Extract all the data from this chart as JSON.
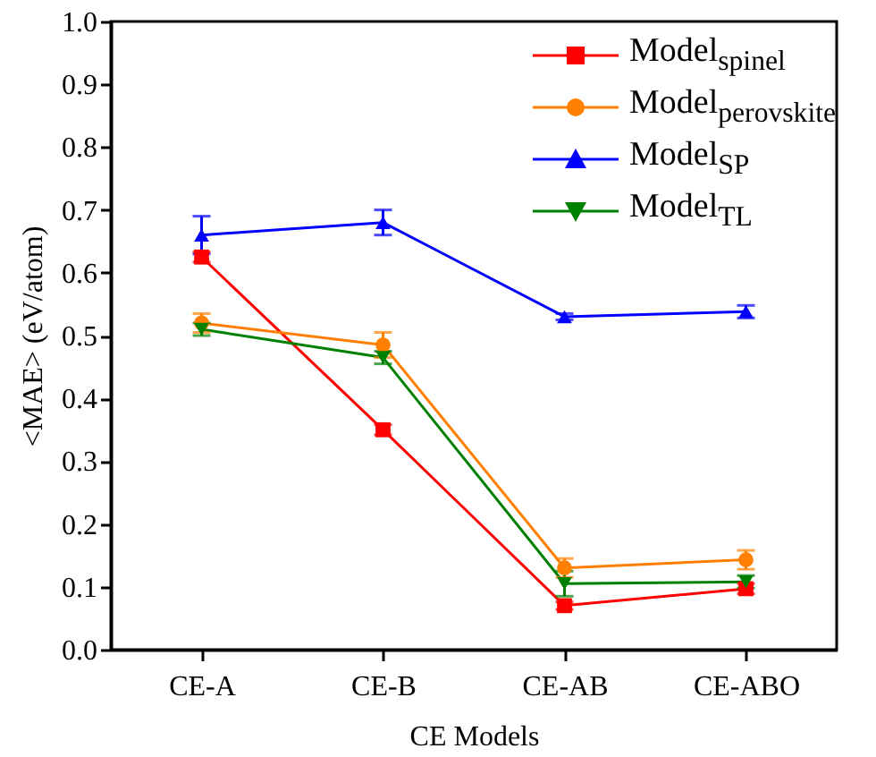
{
  "chart_data": {
    "type": "line",
    "xlabel": "CE Models",
    "ylabel": "<MAE> (eV/atom)",
    "categories": [
      "CE-A",
      "CE-B",
      "CE-AB",
      "CE-ABO"
    ],
    "ylim": [
      0,
      1
    ],
    "yticks": [
      {
        "value": 0,
        "label": "0.0"
      },
      {
        "value": 0.1,
        "label": "0.1"
      },
      {
        "value": 0.2,
        "label": "0.2"
      },
      {
        "value": 0.3,
        "label": "0.3"
      },
      {
        "value": 0.4,
        "label": "0.4"
      },
      {
        "value": 0.5,
        "label": "0.5"
      },
      {
        "value": 0.6,
        "label": "0.6"
      },
      {
        "value": 0.7,
        "label": "0.7"
      },
      {
        "value": 0.8,
        "label": "0.8"
      },
      {
        "value": 0.9,
        "label": "0.9"
      },
      {
        "value": 1,
        "label": "1.0"
      }
    ],
    "grid": false,
    "legend": "top right",
    "series": [
      {
        "name": "Model$_{spinel}$",
        "color": "#ff0000",
        "marker": "square",
        "values": [
          0.625,
          0.35,
          0.07,
          0.097
        ],
        "errors": [
          0.008,
          0.008,
          0.006,
          0.008
        ]
      },
      {
        "name": "Model$_{perovskite}$",
        "color": "#ff8000",
        "marker": "circle",
        "values": [
          0.52,
          0.485,
          0.13,
          0.143
        ],
        "errors": [
          0.015,
          0.02,
          0.015,
          0.015
        ]
      },
      {
        "name": "Model$_{SP}$",
        "color": "#0000ff",
        "marker": "triangle",
        "values": [
          0.66,
          0.68,
          0.53,
          0.538
        ],
        "errors": [
          0.03,
          0.02,
          0.005,
          0.01
        ]
      },
      {
        "name": "Model$_{TL}$",
        "color": "#008000",
        "marker": "triangle-down",
        "values": [
          0.51,
          0.465,
          0.105,
          0.108
        ],
        "errors": [
          0.01,
          0.01,
          0.02,
          0.01
        ]
      }
    ]
  }
}
